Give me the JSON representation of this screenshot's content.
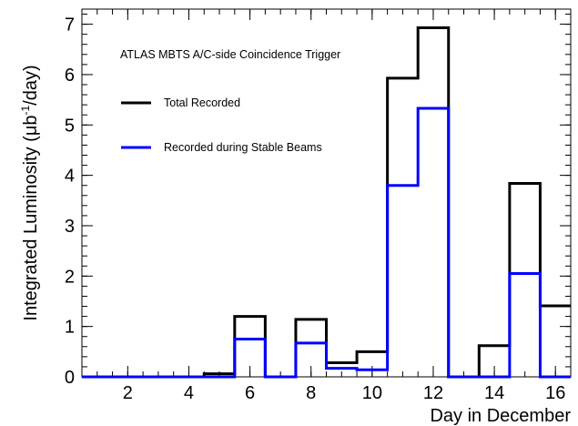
{
  "chart_data": {
    "type": "step",
    "annotation": "ATLAS MBTS A/C-side Coincidence Trigger",
    "xlabel": "Day in December",
    "ylabel_prefix": "Integrated Luminosity (μb",
    "ylabel_sup": "-1",
    "ylabel_suffix": "/day)",
    "xlim": [
      0.5,
      16.5
    ],
    "ylim": [
      0,
      7.3
    ],
    "x_ticks": [
      2,
      4,
      6,
      8,
      10,
      12,
      14,
      16
    ],
    "y_ticks": [
      0,
      1,
      2,
      3,
      4,
      5,
      6,
      7
    ],
    "bin_width": 1,
    "bin_centers": [
      1,
      2,
      3,
      4,
      5,
      6,
      7,
      8,
      9,
      10,
      11,
      12,
      13,
      14,
      15,
      16
    ],
    "series": [
      {
        "name": "Total Recorded",
        "color": "#000000",
        "values": [
          0,
          0,
          0,
          0,
          0.06,
          1.2,
          0,
          1.14,
          0.28,
          0.5,
          5.93,
          6.93,
          0,
          0.62,
          3.84,
          1.41
        ]
      },
      {
        "name": "Recorded during Stable Beams",
        "color": "#0000ff",
        "values": [
          0,
          0,
          0,
          0,
          0,
          0.75,
          0,
          0.67,
          0.17,
          0.14,
          3.8,
          5.33,
          0,
          0,
          2.05,
          0
        ]
      }
    ],
    "legend": {
      "placement": "top-left"
    }
  }
}
